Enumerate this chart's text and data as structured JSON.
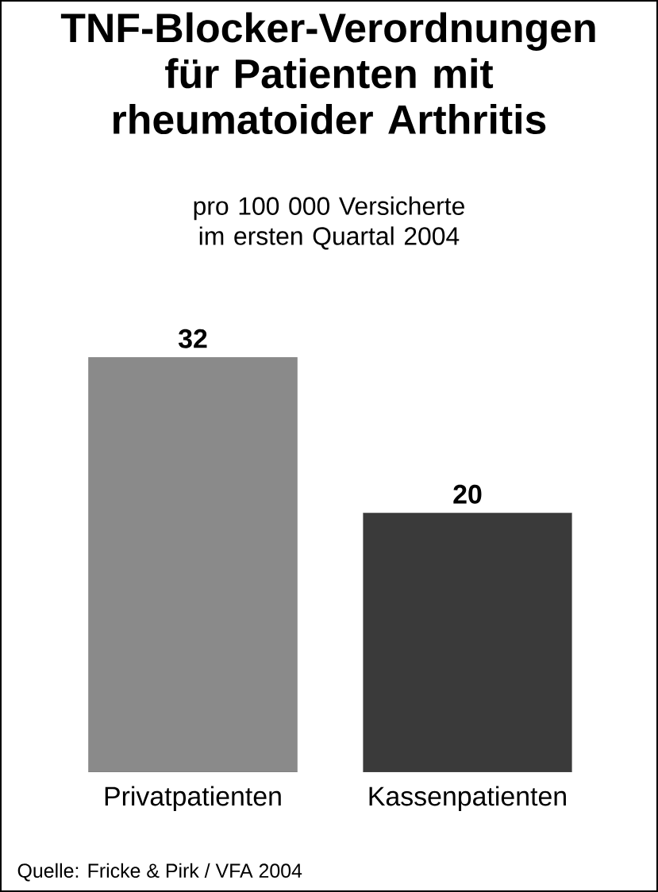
{
  "chart_data": {
    "type": "bar",
    "title": "TNF-Blocker-Verordnungen für Patienten mit rheumatoider Arthritis",
    "subtitle": "pro 100 000 Versicherte im ersten Quartal 2004",
    "categories": [
      "Privatpatienten",
      "Kassenpatienten"
    ],
    "values": [
      32,
      20
    ],
    "colors": [
      "#8a8a8a",
      "#3a3a3a"
    ],
    "data_labels": true,
    "annotations": [
      "Quelle: Fricke & Pirk / VFA 2004"
    ]
  }
}
